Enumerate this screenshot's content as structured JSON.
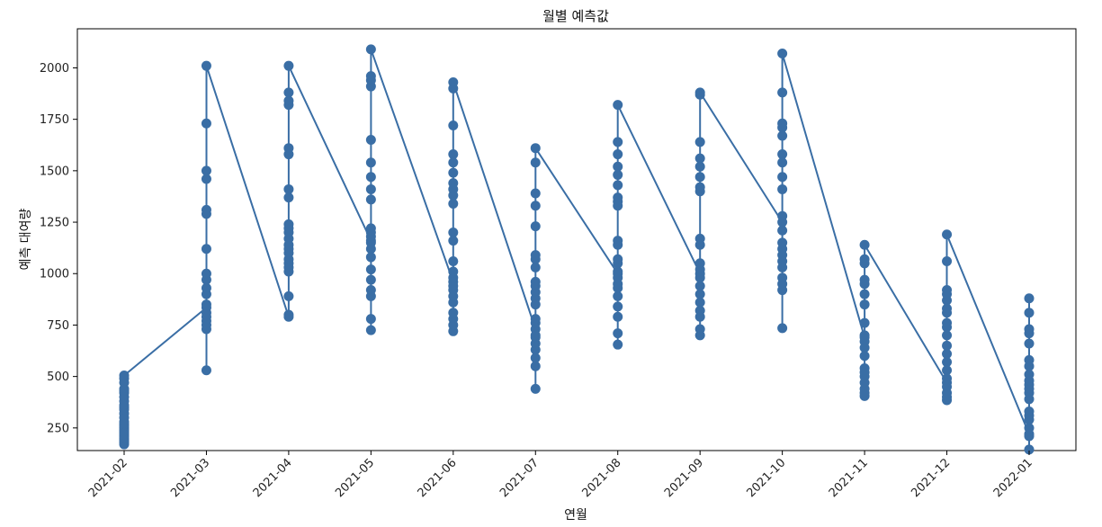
{
  "chart_data": {
    "type": "line",
    "title": "월별 예측값",
    "xlabel": "연월",
    "ylabel": "예측 대여량",
    "categories": [
      "2021-02",
      "2021-03",
      "2021-04",
      "2021-05",
      "2021-06",
      "2021-07",
      "2021-08",
      "2021-09",
      "2021-10",
      "2021-11",
      "2021-12",
      "2022-01"
    ],
    "ylim": [
      140,
      2190
    ],
    "yticks": [
      250,
      500,
      750,
      1000,
      1250,
      1500,
      1750,
      2000
    ],
    "grid": false,
    "color": "#3a6ea5",
    "series": [
      {
        "values": [
          [
            240,
            170,
            180,
            190,
            200,
            210,
            220,
            230,
            250,
            260,
            270,
            280,
            300,
            320,
            340,
            350,
            360,
            380,
            400,
            420,
            430,
            440,
            470,
            490,
            505
          ],
          [
            835,
            530,
            730,
            750,
            770,
            790,
            810,
            850,
            900,
            930,
            970,
            1000,
            1120,
            1290,
            1310,
            1460,
            1500,
            1730,
            2010
          ],
          [
            790,
            800,
            890,
            1010,
            1030,
            1050,
            1070,
            1100,
            1120,
            1140,
            1170,
            1200,
            1220,
            1240,
            1370,
            1410,
            1580,
            1610,
            1820,
            1840,
            1880,
            2010
          ],
          [
            1160,
            725,
            780,
            890,
            920,
            970,
            1020,
            1080,
            1120,
            1150,
            1180,
            1200,
            1220,
            1360,
            1410,
            1470,
            1540,
            1650,
            1910,
            1940,
            1960,
            2090
          ],
          [
            960,
            720,
            750,
            780,
            810,
            860,
            890,
            920,
            940,
            980,
            1010,
            1060,
            1160,
            1200,
            1340,
            1380,
            1410,
            1440,
            1490,
            1540,
            1580,
            1720,
            1900,
            1930
          ],
          [
            730,
            440,
            550,
            590,
            630,
            660,
            690,
            700,
            760,
            780,
            850,
            880,
            910,
            940,
            960,
            1030,
            1070,
            1090,
            1230,
            1330,
            1390,
            1540,
            1610
          ],
          [
            1000,
            655,
            710,
            790,
            840,
            890,
            930,
            950,
            980,
            1010,
            1050,
            1070,
            1140,
            1160,
            1330,
            1350,
            1370,
            1430,
            1480,
            1520,
            1580,
            1640,
            1820
          ],
          [
            1000,
            700,
            730,
            790,
            820,
            860,
            900,
            940,
            980,
            1020,
            1050,
            1140,
            1170,
            1400,
            1420,
            1470,
            1520,
            1560,
            1640,
            1870,
            1880
          ],
          [
            1250,
            735,
            920,
            950,
            980,
            1030,
            1060,
            1090,
            1120,
            1150,
            1210,
            1280,
            1410,
            1470,
            1540,
            1580,
            1670,
            1710,
            1730,
            1880,
            2070
          ],
          [
            690,
            405,
            420,
            440,
            470,
            500,
            520,
            540,
            600,
            640,
            670,
            700,
            760,
            850,
            900,
            950,
            970,
            1050,
            1070,
            1140
          ],
          [
            470,
            385,
            400,
            420,
            450,
            490,
            530,
            570,
            610,
            650,
            700,
            740,
            760,
            810,
            830,
            870,
            900,
            920,
            1060,
            1190
          ],
          [
            220,
            145,
            210,
            250,
            290,
            310,
            330,
            390,
            420,
            440,
            460,
            480,
            510,
            550,
            580,
            660,
            710,
            730,
            810,
            880
          ]
        ]
      }
    ]
  }
}
